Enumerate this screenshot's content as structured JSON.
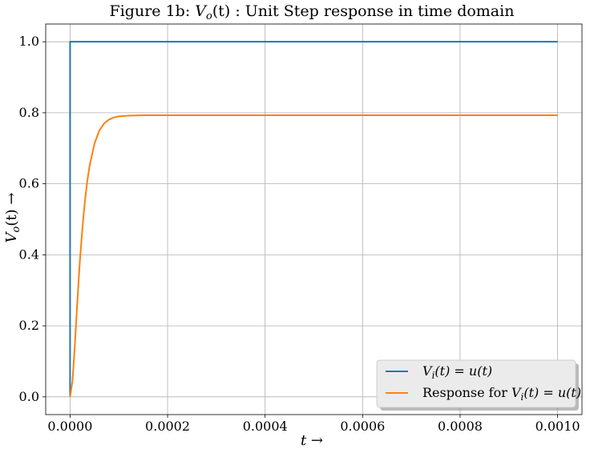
{
  "chart_data": {
    "type": "line",
    "title": {
      "prefix": "Figure 1b: ",
      "var": "V",
      "sub": "o",
      "arg": "(t)",
      "suffix": " : Unit Step response in time domain"
    },
    "xlabel": {
      "var": "t",
      "arrow": " →"
    },
    "ylabel": {
      "var": "V",
      "sub": "o",
      "arg": "(t)",
      "arrow": " →"
    },
    "xlim": [
      -5e-05,
      0.00105
    ],
    "ylim": [
      -0.05,
      1.05
    ],
    "xticks": [
      0.0,
      0.0002,
      0.0004,
      0.0006,
      0.0008,
      0.001
    ],
    "xtick_labels": [
      "0.0000",
      "0.0002",
      "0.0004",
      "0.0006",
      "0.0008",
      "0.0010"
    ],
    "yticks": [
      0.0,
      0.2,
      0.4,
      0.6,
      0.8,
      1.0
    ],
    "ytick_labels": [
      "0.0",
      "0.2",
      "0.4",
      "0.6",
      "0.8",
      "1.0"
    ],
    "grid": true,
    "legend_position": "lower-right",
    "series": [
      {
        "legend": {
          "var": "V",
          "sub": "i",
          "rest": "(t) = u(t)"
        },
        "color": "#1f77b4",
        "x": [
          0.0,
          0.0,
          0.001
        ],
        "y": [
          0.0,
          1.0,
          1.0
        ]
      },
      {
        "legend": {
          "prefix": "Response for ",
          "var": "V",
          "sub": "i",
          "rest": "(t) = u(t)"
        },
        "color": "#ff7f0e",
        "x": [
          0.0,
          5e-06,
          1e-05,
          1.5e-05,
          2e-05,
          2.5e-05,
          3e-05,
          3.5e-05,
          4e-05,
          5e-05,
          6e-05,
          7e-05,
          8e-05,
          9e-05,
          0.0001,
          0.00012,
          0.00015,
          0.0002,
          0.0003,
          0.0005,
          0.0007,
          0.001
        ],
        "y": [
          0.0,
          0.045,
          0.15,
          0.27,
          0.38,
          0.47,
          0.545,
          0.605,
          0.65,
          0.713,
          0.75,
          0.77,
          0.781,
          0.787,
          0.79,
          0.792,
          0.793,
          0.793,
          0.793,
          0.793,
          0.793,
          0.793
        ]
      }
    ]
  }
}
